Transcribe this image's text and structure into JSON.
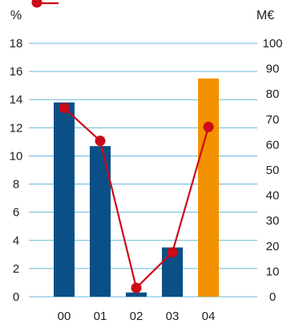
{
  "chart_data": {
    "type": "bar",
    "categories": [
      "00",
      "01",
      "02",
      "03",
      "04"
    ],
    "left_axis": {
      "unit_label": "%",
      "range": [
        0,
        18
      ],
      "ticks": [
        "0",
        "2",
        "4",
        "6",
        "8",
        "10",
        "12",
        "14",
        "16",
        "18"
      ]
    },
    "right_axis": {
      "unit_label": "M€",
      "range": [
        0,
        100
      ],
      "ticks": [
        "0",
        "10",
        "20",
        "30",
        "40",
        "50",
        "60",
        "70",
        "80",
        "90",
        "100"
      ]
    },
    "series": [
      {
        "kind": "bar",
        "axis": "left",
        "values": [
          13.8,
          10.7,
          0.3,
          3.5,
          15.5
        ],
        "bar_colors": [
          "#0a4f86",
          "#0a4f86",
          "#0a4f86",
          "#0a4f86",
          "#f39200"
        ]
      },
      {
        "kind": "line",
        "axis": "right",
        "values": [
          74.5,
          61.5,
          3.5,
          17.5,
          67
        ],
        "color": "#cc0a18"
      }
    ],
    "grid": true,
    "grid_color": "#67b9dc",
    "legend": {
      "position": "top-left",
      "marker": "line-with-dot"
    }
  }
}
